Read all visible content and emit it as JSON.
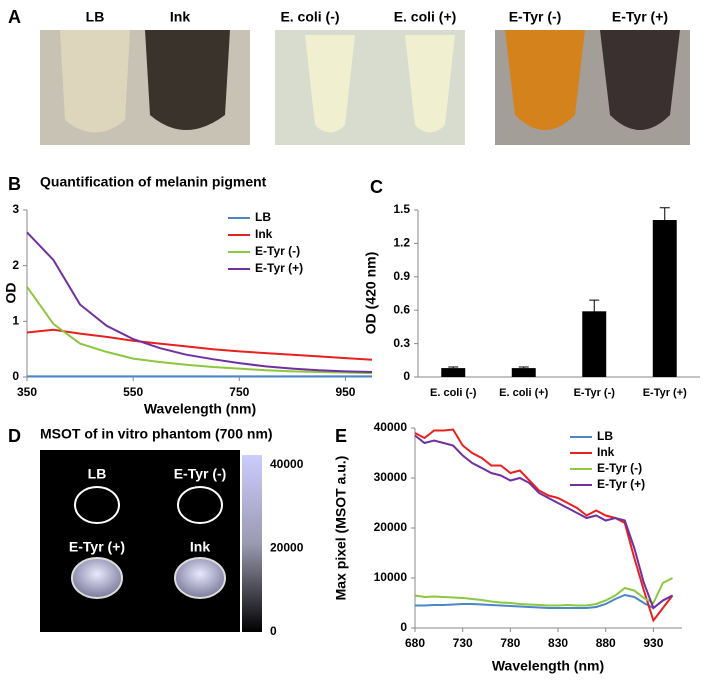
{
  "panel_labels": [
    "A",
    "B",
    "C",
    "D",
    "E"
  ],
  "photos": {
    "labels": [
      "LB",
      "Ink",
      "E. coli (-)",
      "E. coli (+)",
      "E-Tyr (-)",
      "E-Tyr (+)"
    ]
  },
  "phantom": {
    "title": "MSOT of in vitro phantom (700 nm)",
    "labels": [
      "LB",
      "E-Tyr (-)",
      "E-Tyr (+)",
      "Ink"
    ],
    "colorbar_ticks": [
      0,
      20000,
      40000
    ]
  },
  "chart_data": [
    {
      "type": "line",
      "title": "Quantification of melanin pigment",
      "x_label": "Wavelength (nm)",
      "y_label": "OD",
      "x": [
        350,
        400,
        450,
        500,
        550,
        600,
        650,
        700,
        750,
        800,
        850,
        900,
        950,
        1000
      ],
      "series": [
        {
          "name": "LB",
          "color": "#4a86c8",
          "values": [
            0.01,
            0.01,
            0.01,
            0.01,
            0.01,
            0.01,
            0.01,
            0.01,
            0.01,
            0.01,
            0.01,
            0.01,
            0.01,
            0.01
          ]
        },
        {
          "name": "Ink",
          "color": "#e8201e",
          "values": [
            0.8,
            0.85,
            0.78,
            0.72,
            0.65,
            0.6,
            0.55,
            0.5,
            0.46,
            0.43,
            0.4,
            0.37,
            0.34,
            0.31
          ]
        },
        {
          "name": "E-Tyr (-)",
          "color": "#8dc63f",
          "values": [
            1.62,
            0.95,
            0.6,
            0.45,
            0.33,
            0.27,
            0.22,
            0.18,
            0.15,
            0.12,
            0.1,
            0.09,
            0.08,
            0.07
          ]
        },
        {
          "name": "E-Tyr (+)",
          "color": "#7030a0",
          "values": [
            2.6,
            2.1,
            1.3,
            0.92,
            0.68,
            0.52,
            0.4,
            0.32,
            0.25,
            0.19,
            0.15,
            0.12,
            0.1,
            0.09
          ]
        }
      ],
      "xlim": [
        350,
        1000
      ],
      "xticks": [
        350,
        550,
        750,
        950
      ],
      "ylim": [
        0,
        3
      ],
      "yticks": [
        0,
        1,
        2,
        3
      ],
      "legend": "upper right"
    },
    {
      "type": "bar",
      "y_label": "OD (420 nm)",
      "categories": [
        "E. coli (-)",
        "E. coli (+)",
        "E-Tyr (-)",
        "E-Tyr (+)"
      ],
      "values": [
        0.08,
        0.08,
        0.59,
        1.41
      ],
      "errors": [
        0.01,
        0.01,
        0.1,
        0.11
      ],
      "color": "#000000",
      "ylim": [
        0,
        1.5
      ],
      "yticks": [
        0,
        0.3,
        0.6,
        0.9,
        1.2,
        1.5
      ]
    },
    {
      "type": "line",
      "x_label": "Wavelength (nm)",
      "y_label": "Max pixel (MSOT a.u.)",
      "x": [
        680,
        690,
        700,
        710,
        720,
        730,
        740,
        750,
        760,
        770,
        780,
        790,
        800,
        810,
        820,
        830,
        840,
        850,
        860,
        870,
        880,
        890,
        900,
        910,
        920,
        930,
        940,
        950
      ],
      "series": [
        {
          "name": "LB",
          "color": "#4a86c8",
          "values": [
            4500,
            4500,
            4600,
            4600,
            4700,
            4800,
            4800,
            4700,
            4600,
            4500,
            4400,
            4300,
            4200,
            4100,
            4000,
            4000,
            4000,
            4000,
            4000,
            4200,
            4800,
            5800,
            6600,
            6200,
            5000,
            4000,
            5500,
            6500
          ]
        },
        {
          "name": "Ink",
          "color": "#e8201e",
          "values": [
            39000,
            38000,
            39500,
            39500,
            39700,
            36500,
            35000,
            34000,
            32500,
            32500,
            31000,
            31500,
            29500,
            27500,
            26500,
            26000,
            25000,
            24000,
            22500,
            23500,
            22500,
            22000,
            21000,
            14000,
            7500,
            1500,
            4000,
            6500
          ]
        },
        {
          "name": "E-Tyr (-)",
          "color": "#8dc63f",
          "values": [
            6500,
            6200,
            6300,
            6200,
            6100,
            6000,
            5800,
            5600,
            5300,
            5100,
            5000,
            4800,
            4700,
            4600,
            4500,
            4500,
            4600,
            4500,
            4500,
            4800,
            5500,
            6500,
            8000,
            7500,
            6000,
            5000,
            9000,
            10000
          ]
        },
        {
          "name": "E-Tyr (+)",
          "color": "#7030a0",
          "values": [
            38500,
            37000,
            37500,
            37000,
            36500,
            34500,
            33000,
            32000,
            31000,
            30500,
            29500,
            30000,
            29000,
            27000,
            26000,
            25000,
            24000,
            23000,
            22000,
            22500,
            21500,
            22000,
            21500,
            16000,
            9000,
            4000,
            5500,
            6500
          ]
        }
      ],
      "xlim": [
        680,
        960
      ],
      "xticks": [
        680,
        730,
        780,
        830,
        880,
        930
      ],
      "ylim": [
        0,
        40000
      ],
      "yticks": [
        0,
        10000,
        20000,
        30000,
        40000
      ],
      "legend": "upper right"
    }
  ]
}
